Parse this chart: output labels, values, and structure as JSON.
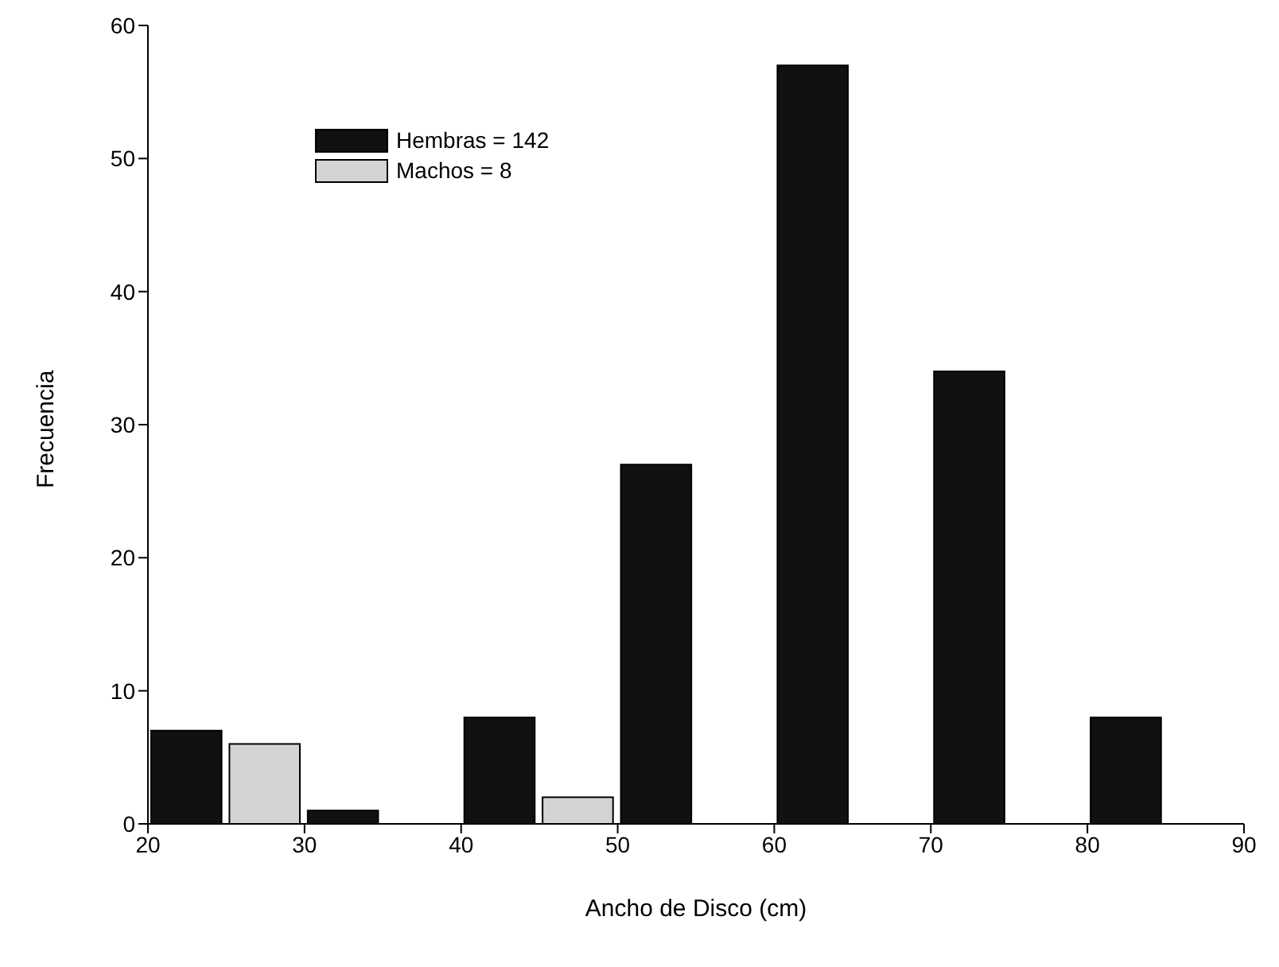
{
  "chart_data": {
    "type": "histogram",
    "xlabel": "Ancho de Disco (cm)",
    "ylabel": "Frecuencia",
    "bins": [
      20,
      25,
      30,
      35,
      40,
      45,
      50,
      55,
      60,
      65,
      70,
      75,
      80,
      85,
      90
    ],
    "series": [
      {
        "name": "Hembras = 142",
        "color": "#111111",
        "values": [
          7,
          0,
          1,
          0,
          8,
          0,
          27,
          0,
          57,
          0,
          34,
          0,
          8,
          0
        ]
      },
      {
        "name": "Machos = 8",
        "color": "#d3d3d3",
        "values": [
          0,
          6,
          0,
          0,
          0,
          2,
          0,
          0,
          0,
          0,
          0,
          0,
          0,
          0
        ]
      }
    ],
    "xlim": [
      20,
      90
    ],
    "xticks": [
      20,
      30,
      40,
      50,
      60,
      70,
      80,
      90
    ],
    "ylim": [
      0,
      60
    ],
    "yticks": [
      0,
      10,
      20,
      30,
      40,
      50,
      60
    ],
    "grid": false,
    "legend": "top left"
  }
}
